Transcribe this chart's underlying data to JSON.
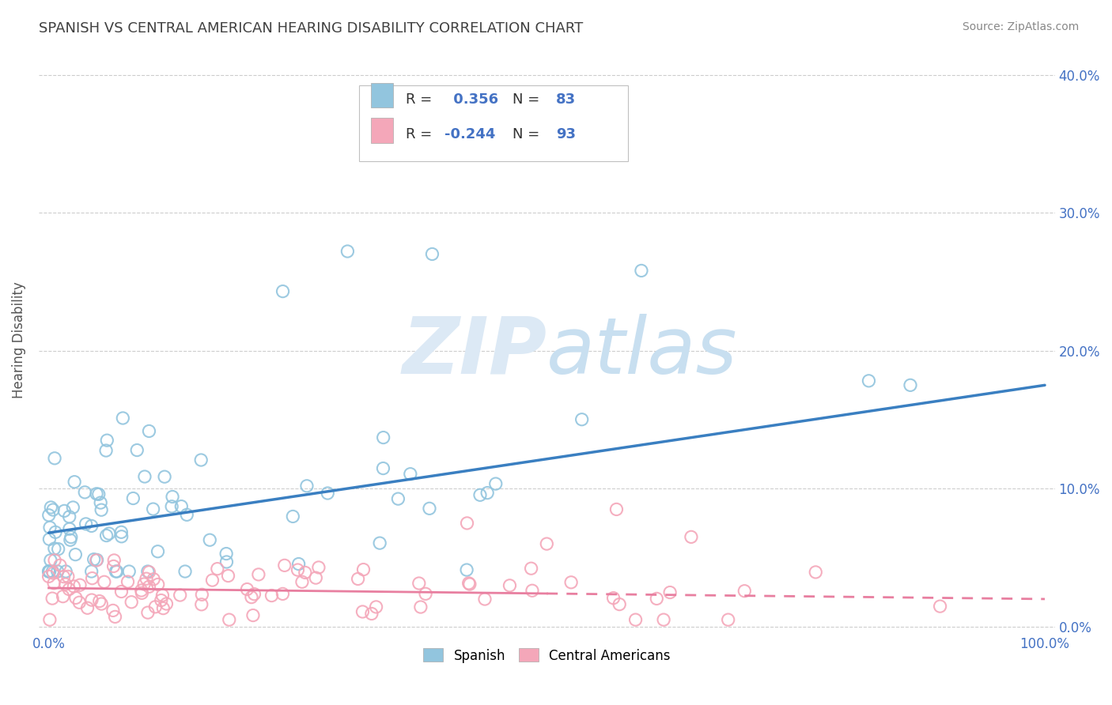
{
  "title": "SPANISH VS CENTRAL AMERICAN HEARING DISABILITY CORRELATION CHART",
  "source": "Source: ZipAtlas.com",
  "ylabel": "Hearing Disability",
  "r_spanish": 0.356,
  "n_spanish": 83,
  "r_central": -0.244,
  "n_central": 93,
  "blue_color": "#92c5de",
  "pink_color": "#f4a7b9",
  "blue_line_color": "#3a7fc1",
  "pink_line_color": "#e87fa0",
  "axis_label_color": "#4472C4",
  "title_color": "#404040",
  "watermark_color": "#dce9f5",
  "background_color": "#ffffff",
  "grid_color": "#c8c8c8",
  "xlim": [
    -0.01,
    1.01
  ],
  "ylim": [
    -0.005,
    0.42
  ],
  "yticks": [
    0.0,
    0.1,
    0.2,
    0.3,
    0.4
  ],
  "trend_sp_x0": 0.0,
  "trend_sp_y0": 0.068,
  "trend_sp_x1": 1.0,
  "trend_sp_y1": 0.175,
  "trend_ca_x0": 0.0,
  "trend_ca_y0": 0.028,
  "trend_ca_x1": 1.0,
  "trend_ca_y1": 0.02
}
